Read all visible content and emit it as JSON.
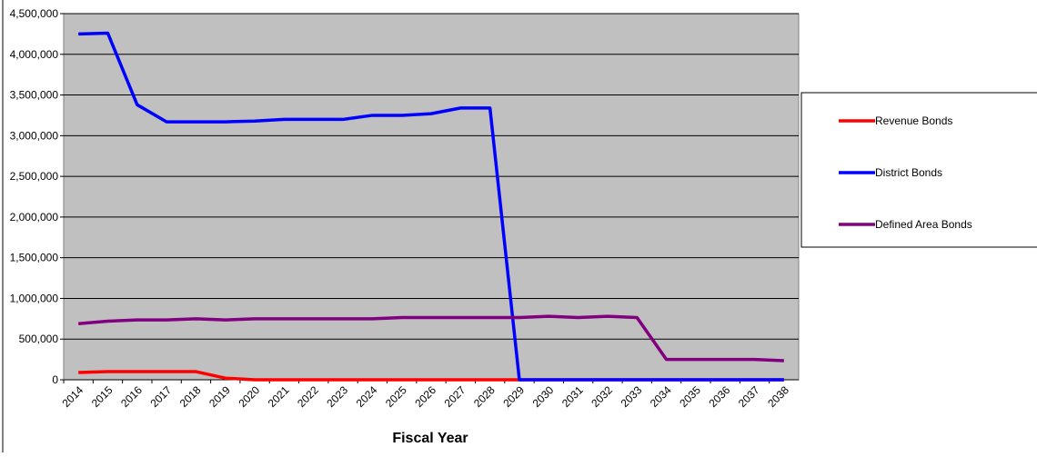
{
  "chart_data": {
    "type": "line",
    "x_label": "Fiscal Year",
    "categories": [
      "2014",
      "2015",
      "2016",
      "2017",
      "2018",
      "2019",
      "2020",
      "2021",
      "2022",
      "2023",
      "2024",
      "2025",
      "2026",
      "2027",
      "2028",
      "2029",
      "2030",
      "2031",
      "2032",
      "2033",
      "2034",
      "2035",
      "2036",
      "2037",
      "2038"
    ],
    "series": [
      {
        "name": "Revenue Bonds",
        "color": "#ff0000",
        "values": [
          90000,
          100000,
          100000,
          100000,
          100000,
          20000,
          0,
          0,
          0,
          0,
          0,
          0,
          0,
          0,
          0,
          0,
          0,
          0,
          0,
          0,
          0,
          0,
          0,
          0,
          0
        ]
      },
      {
        "name": "District Bonds",
        "color": "#0000ff",
        "values": [
          4250000,
          4260000,
          3380000,
          3170000,
          3170000,
          3170000,
          3180000,
          3200000,
          3200000,
          3200000,
          3250000,
          3250000,
          3270000,
          3340000,
          3340000,
          0,
          0,
          0,
          0,
          0,
          0,
          0,
          0,
          0,
          0
        ]
      },
      {
        "name": "Defined Area Bonds",
        "color": "#800080",
        "values": [
          690000,
          720000,
          735000,
          735000,
          750000,
          735000,
          750000,
          750000,
          750000,
          750000,
          750000,
          765000,
          765000,
          765000,
          765000,
          765000,
          780000,
          765000,
          780000,
          765000,
          250000,
          250000,
          250000,
          250000,
          235000
        ]
      }
    ],
    "ylim": [
      0,
      4500000
    ],
    "yticks": [
      0,
      {
        "value": 500000,
        "label": "500,000"
      },
      {
        "value": 1000000,
        "label": "1,000,000"
      },
      {
        "value": 1500000,
        "label": "1,500,000"
      },
      {
        "value": 2000000,
        "label": "2,000,000"
      },
      {
        "value": 2500000,
        "label": "2,500,000"
      },
      {
        "value": 3000000,
        "label": "3,000,000"
      },
      {
        "value": 3500000,
        "label": "3,500,000"
      },
      {
        "value": 4000000,
        "label": "4,000,000"
      },
      {
        "value": 4500000,
        "label": "4,500,000"
      }
    ],
    "grid": true,
    "legend": "right",
    "plot_background": "#c0c0c0"
  }
}
